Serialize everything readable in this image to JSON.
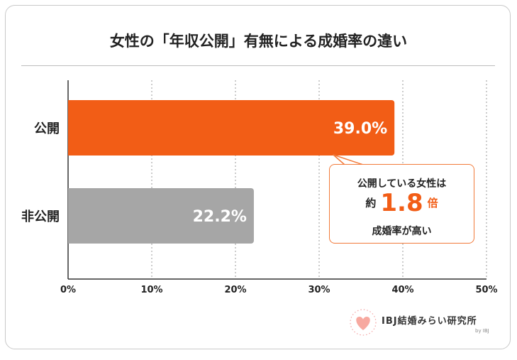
{
  "chart_data": {
    "type": "bar",
    "orientation": "horizontal",
    "title": "女性の「年収公開」有無による成婚率の違い",
    "categories": [
      "公開",
      "非公開"
    ],
    "values": [
      39.0,
      22.2
    ],
    "value_labels": [
      "39.0%",
      "22.2%"
    ],
    "colors": [
      "#f25d16",
      "#a6a6a6"
    ],
    "xlim": [
      0,
      50
    ],
    "xticks": [
      "0%",
      "10%",
      "20%",
      "30%",
      "40%",
      "50%"
    ],
    "grid": true,
    "annotation": {
      "line1": "公開している女性は",
      "prefix": "約",
      "value": "1.8",
      "suffix": "倍",
      "line3": "成婚率が高い"
    }
  },
  "logo": {
    "name": "IBJ結婚みらい研究所",
    "by": "by IBJ"
  }
}
